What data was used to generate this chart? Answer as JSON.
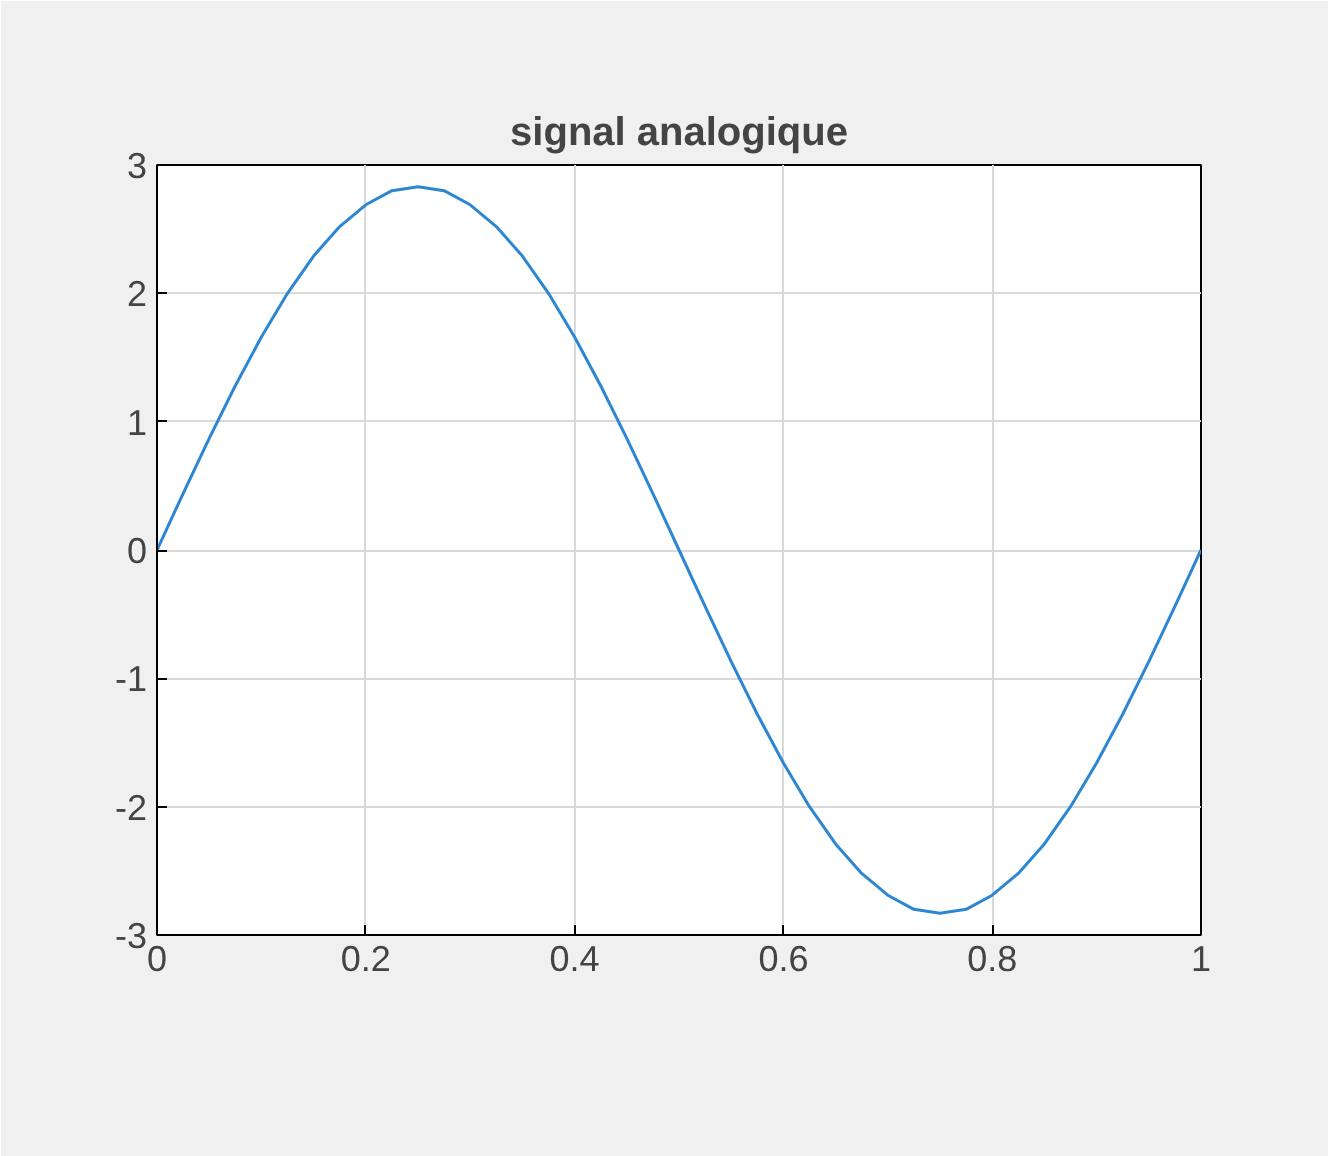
{
  "chart_data": {
    "type": "line",
    "title": "signal analogique",
    "x": [
      0,
      0.025,
      0.05,
      0.075,
      0.1,
      0.125,
      0.15,
      0.175,
      0.2,
      0.225,
      0.25,
      0.275,
      0.3,
      0.325,
      0.35,
      0.375,
      0.4,
      0.425,
      0.45,
      0.475,
      0.5,
      0.525,
      0.55,
      0.575,
      0.6,
      0.625,
      0.65,
      0.675,
      0.7,
      0.725,
      0.75,
      0.775,
      0.8,
      0.825,
      0.85,
      0.875,
      0.9,
      0.925,
      0.95,
      0.975,
      1
    ],
    "series": [
      {
        "color": "#2c86d1",
        "values": [
          0,
          0.44,
          0.87,
          1.28,
          1.66,
          2.0,
          2.29,
          2.52,
          2.69,
          2.8,
          2.83,
          2.8,
          2.69,
          2.52,
          2.29,
          2.0,
          1.66,
          1.28,
          0.87,
          0.44,
          0,
          -0.44,
          -0.87,
          -1.28,
          -1.66,
          -2.0,
          -2.29,
          -2.52,
          -2.69,
          -2.8,
          -2.83,
          -2.8,
          -2.69,
          -2.52,
          -2.29,
          -2.0,
          -1.66,
          -1.28,
          -0.87,
          -0.44,
          0
        ]
      }
    ],
    "xlim": [
      0,
      1
    ],
    "ylim": [
      -3,
      3
    ],
    "xticks": [
      0,
      0.2,
      0.4,
      0.6,
      0.8,
      1
    ],
    "yticks": [
      -3,
      -2,
      -1,
      0,
      1,
      2,
      3
    ],
    "grid": true,
    "marker": "none",
    "line_style": "solid"
  }
}
